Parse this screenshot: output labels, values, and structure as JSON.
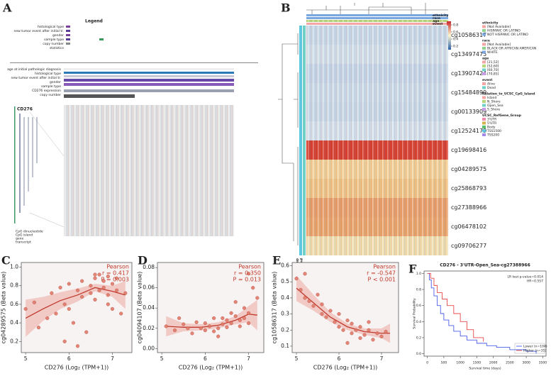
{
  "panel_a": {
    "label": "A",
    "legend_title": "Legend",
    "legend_rows": [
      "histological type",
      "new tumor event after initial tr.",
      "gender",
      "sample type",
      "copy number",
      "statistics"
    ],
    "tracks": [
      "age at initial pathologic diagnosis",
      "histological type",
      "new tumor event after initial tr.",
      "gender",
      "sample type",
      "CD276 expression",
      "copy number"
    ],
    "gene": "CD276",
    "key": [
      "CpG dinucleotide",
      "CpG island",
      "gene",
      "transcript"
    ]
  },
  "panel_b": {
    "label": "B",
    "rows": [
      {
        "name": "cg10586317",
        "color": "#c9d9e8"
      },
      {
        "name": "cg13497475",
        "color": "#d3dfe9"
      },
      {
        "name": "cg13907424",
        "color": "#c6d6e6"
      },
      {
        "name": "cg15484899",
        "color": "#cddbe8"
      },
      {
        "name": "cg00133909",
        "color": "#c8d8e7"
      },
      {
        "name": "cg12524179",
        "color": "#d5e0ea"
      },
      {
        "name": "cg19698416",
        "color": "#d7402f"
      },
      {
        "name": "cg04289575",
        "color": "#f2cf96"
      },
      {
        "name": "cg25868793",
        "color": "#efc486"
      },
      {
        "name": "cg27388966",
        "color": "#e8a06a"
      },
      {
        "name": "cg06478102",
        "color": "#e9a56c"
      },
      {
        "name": "cg09706277",
        "color": "#f1dfb0"
      }
    ],
    "top_tracks": [
      "ethnicity",
      "race",
      "age",
      "event"
    ],
    "side_tracks": [
      "UCSC_RefGene_Group",
      "Relation_to_UCSC_CpG_Island"
    ],
    "colorbar_ticks": [
      0.8,
      0.6,
      0.4,
      0.2
    ],
    "colorbar_lim": [
      0.1,
      0.9
    ],
    "legend": [
      {
        "title": "ethnicity",
        "items": [
          {
            "label": "[Not Available]",
            "color": "#f4a6a6"
          },
          {
            "label": "HISPANIC OR LATINO",
            "color": "#8fd18f"
          },
          {
            "label": "NOT HISPANIC OR LATINO",
            "color": "#7aa7e0"
          }
        ]
      },
      {
        "title": "race",
        "items": [
          {
            "label": "[Not Available]",
            "color": "#f4a6a6"
          },
          {
            "label": "BLACK OR AFRICAN AMERICAN",
            "color": "#8fd18f"
          },
          {
            "label": "WHITE",
            "color": "#7aa7e0"
          }
        ]
      },
      {
        "title": "age",
        "items": [
          {
            "label": "[21,52]",
            "color": "#f4a6a6"
          },
          {
            "label": "[52,60]",
            "color": "#b8d67a"
          },
          {
            "label": "[60,70]",
            "color": "#6fd0c8"
          },
          {
            "label": "[70,85]",
            "color": "#c79ae8"
          }
        ]
      },
      {
        "title": "event",
        "items": [
          {
            "label": "Alive",
            "color": "#f4a6a6"
          },
          {
            "label": "Dead",
            "color": "#6fd0c8"
          }
        ]
      },
      {
        "title": "Relation_to_UCSC_CpG_Island",
        "items": [
          {
            "label": "Island",
            "color": "#f4a6a6"
          },
          {
            "label": "N_Shore",
            "color": "#b8d67a"
          },
          {
            "label": "Open_Sea",
            "color": "#6fd0c8"
          },
          {
            "label": "S_Shore",
            "color": "#c79ae8"
          }
        ]
      },
      {
        "title": "UCSC_RefGene_Group",
        "items": [
          {
            "label": "3'UTR",
            "color": "#f08ab0"
          },
          {
            "label": "5'UTR",
            "color": "#d2b24a"
          },
          {
            "label": "Body",
            "color": "#5cc06a"
          },
          {
            "label": "TSS1500",
            "color": "#5cc8e0"
          },
          {
            "label": "TSS200",
            "color": "#a48ae8"
          }
        ]
      }
    ]
  },
  "chart_data": [
    {
      "type": "scatter",
      "label": "C",
      "x_label": "CD276 (Log₂ (TPM+1))",
      "y_label": "cg04289575 (Beta value)",
      "annotations": [
        "Pearson",
        "r = 0.417",
        "P = 0.003"
      ],
      "color": "#e07a6a",
      "xlim": [
        4.9,
        7.45
      ],
      "xticks": [
        5,
        6,
        7
      ],
      "ylim": [
        0.08,
        1.05
      ],
      "yticks": [
        0.2,
        0.4,
        0.6,
        0.8,
        {
          "value": 1,
          "label": "1.0"
        }
      ],
      "x": [
        5.0,
        5.2,
        5.3,
        5.5,
        5.6,
        5.7,
        5.8,
        5.9,
        6.0,
        6.0,
        6.1,
        6.2,
        6.3,
        6.3,
        6.4,
        6.5,
        6.5,
        6.6,
        6.6,
        6.7,
        6.7,
        6.8,
        6.8,
        6.9,
        6.9,
        7.0,
        7.0,
        7.1,
        7.1,
        7.2,
        6.2,
        5.9,
        6.6,
        6.9,
        7.3
      ],
      "values": [
        0.55,
        0.62,
        0.35,
        0.45,
        0.72,
        0.5,
        0.78,
        0.6,
        0.82,
        0.55,
        0.4,
        0.75,
        0.85,
        0.68,
        0.3,
        0.8,
        0.72,
        0.88,
        0.65,
        0.92,
        0.75,
        0.78,
        0.85,
        0.9,
        0.7,
        0.82,
        0.55,
        0.75,
        0.88,
        0.5,
        0.15,
        0.2,
        0.92,
        0.6,
        0.72
      ],
      "fit": {
        "x": [
          5.0,
          5.4,
          5.8,
          6.2,
          6.6,
          7.0,
          7.3
        ],
        "y": [
          0.45,
          0.55,
          0.64,
          0.7,
          0.78,
          0.74,
          0.7
        ],
        "lower": [
          0.25,
          0.42,
          0.55,
          0.63,
          0.74,
          0.68,
          0.55
        ],
        "upper": [
          0.65,
          0.68,
          0.73,
          0.77,
          0.82,
          0.8,
          0.85
        ]
      }
    },
    {
      "type": "scatter",
      "label": "D",
      "x_label": "CD276 (Log₂ (TPM+1))",
      "y_label": "cg04094107 (Beta value)",
      "annotations": [
        "Pearson",
        "r = 0.350",
        "P = 0.013"
      ],
      "color": "#e07a6a",
      "xlim": [
        4.9,
        7.35
      ],
      "xticks": [
        5,
        6,
        7
      ],
      "ylim": [
        -0.004,
        0.085
      ],
      "yticks": [
        {
          "value": 0,
          "label": "0.00"
        },
        0.02,
        0.04,
        0.06,
        0.08
      ],
      "x": [
        5.1,
        5.3,
        5.5,
        5.6,
        5.7,
        5.8,
        5.9,
        6.0,
        6.0,
        6.1,
        6.2,
        6.2,
        6.3,
        6.4,
        6.4,
        6.5,
        6.5,
        6.6,
        6.6,
        6.7,
        6.8,
        6.8,
        6.9,
        6.9,
        7.0,
        7.0,
        7.1,
        7.2,
        6.3,
        5.4,
        6.7,
        7.0
      ],
      "values": [
        0.022,
        0.018,
        0.024,
        0.02,
        0.015,
        0.026,
        0.02,
        0.018,
        0.025,
        0.022,
        0.03,
        0.017,
        0.02,
        0.024,
        0.03,
        0.021,
        0.028,
        0.025,
        0.035,
        0.032,
        0.028,
        0.022,
        0.04,
        0.03,
        0.074,
        0.035,
        0.06,
        0.05,
        0.012,
        0.03,
        0.046,
        0.025
      ],
      "fit": {
        "x": [
          5.1,
          5.5,
          5.9,
          6.3,
          6.7,
          7.0,
          7.2
        ],
        "y": [
          0.022,
          0.021,
          0.021,
          0.023,
          0.028,
          0.034,
          0.033
        ],
        "lower": [
          0.012,
          0.017,
          0.018,
          0.02,
          0.024,
          0.026,
          0.018
        ],
        "upper": [
          0.032,
          0.025,
          0.024,
          0.026,
          0.032,
          0.042,
          0.048
        ]
      }
    },
    {
      "type": "scatter",
      "label": "E",
      "x_label": "CD276 (Log₂ (TPM+1))",
      "y_label": "cg10586317 (Beta value)",
      "annotations": [
        "Pearson",
        "r = -0.547",
        "P < 0.001"
      ],
      "color": "#e07a6a",
      "xlim": [
        4.9,
        7.4
      ],
      "xticks": [
        5,
        6,
        7
      ],
      "ylim": [
        0.06,
        0.62
      ],
      "yticks": [
        0.1,
        0.2,
        0.3,
        0.4,
        0.5,
        0.6
      ],
      "x": [
        5.0,
        5.1,
        5.2,
        5.3,
        5.4,
        5.5,
        5.6,
        5.7,
        5.8,
        5.9,
        6.0,
        6.0,
        6.1,
        6.2,
        6.3,
        6.3,
        6.4,
        6.5,
        6.5,
        6.6,
        6.7,
        6.8,
        6.9,
        7.0,
        7.1,
        5.2,
        5.6,
        6.2,
        6.7
      ],
      "values": [
        0.52,
        0.45,
        0.4,
        0.38,
        0.35,
        0.42,
        0.3,
        0.28,
        0.32,
        0.25,
        0.22,
        0.3,
        0.2,
        0.26,
        0.18,
        0.24,
        0.2,
        0.15,
        0.22,
        0.17,
        0.2,
        0.14,
        0.18,
        0.16,
        0.19,
        0.55,
        0.36,
        0.12,
        0.25
      ],
      "fit": {
        "x": [
          5.0,
          5.4,
          5.8,
          6.2,
          6.6,
          7.0,
          7.2
        ],
        "y": [
          0.46,
          0.37,
          0.28,
          0.22,
          0.19,
          0.18,
          0.18
        ],
        "lower": [
          0.38,
          0.32,
          0.25,
          0.2,
          0.17,
          0.15,
          0.12
        ],
        "upper": [
          0.54,
          0.42,
          0.31,
          0.24,
          0.21,
          0.21,
          0.24
        ]
      }
    },
    {
      "type": "line",
      "label": "F",
      "title": "CD276 - 3'UTR-Open_Sea-cg27388966",
      "x_label": "Survival time (days)",
      "y_label": "Survival Probability",
      "annotations": [
        "LR test p-value=0.014",
        "HR=0.557"
      ],
      "xlim": [
        -100,
        3600
      ],
      "xticks": [
        0,
        500,
        1000,
        1500,
        2000,
        2500,
        3000,
        3500
      ],
      "ylim": [
        -0.03,
        1.03
      ],
      "yticks": [
        {
          "value": 0,
          "label": "0.0"
        },
        0.2,
        0.4,
        0.6,
        0.8,
        {
          "value": 1,
          "label": "1.0"
        }
      ],
      "series": [
        {
          "name": "Lower (n=104)",
          "color": "#4a5ee8",
          "x": [
            0,
            60,
            120,
            200,
            300,
            400,
            500,
            650,
            800,
            1000,
            1200,
            1500,
            1800,
            2100,
            2500,
            3000,
            3300
          ],
          "values": [
            1,
            0.92,
            0.82,
            0.72,
            0.6,
            0.5,
            0.42,
            0.35,
            0.28,
            0.22,
            0.17,
            0.13,
            0.1,
            0.08,
            0.05,
            0.03,
            0
          ]
        },
        {
          "name": "Higher (n=35)",
          "color": "#e84a4a",
          "x": [
            0,
            100,
            200,
            300,
            450,
            600,
            800,
            1000,
            1200,
            1400,
            1700
          ],
          "values": [
            1,
            0.94,
            0.85,
            0.76,
            0.68,
            0.6,
            0.5,
            0.4,
            0.3,
            0.2,
            0.15
          ]
        }
      ]
    }
  ]
}
